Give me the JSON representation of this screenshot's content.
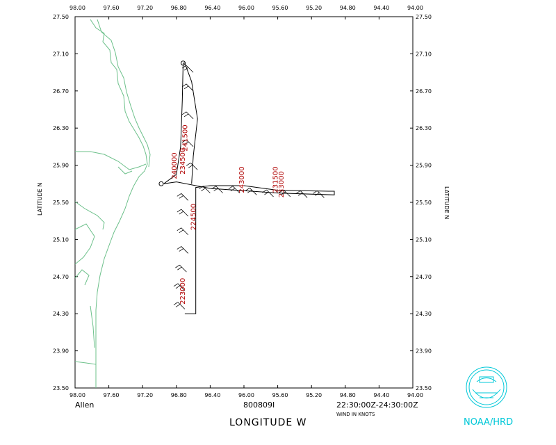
{
  "map": {
    "storm_name": "Allen",
    "flight_id": "800809I",
    "time_range": "22:30:00Z-24:30:00Z",
    "wind_units": "WIND IN KNOTS",
    "x_axis_label": "LONGITUDE  W",
    "y_axis_label": "LATITUDE  N",
    "organization": "NOAA/HRD",
    "coast_color": "#6cc08a",
    "track_color": "#000000",
    "label_color": "#b00000",
    "logo_color": "#00c8d8"
  },
  "chart_data": {
    "type": "map",
    "lon_range": [
      98.0,
      94.0
    ],
    "lat_range": [
      23.5,
      27.5
    ],
    "lon_ticks": [
      "98.00",
      "97.60",
      "97.20",
      "96.80",
      "96.40",
      "96.00",
      "95.60",
      "95.20",
      "94.80",
      "94.40",
      "94.00"
    ],
    "lat_ticks": [
      "27.50",
      "27.10",
      "26.70",
      "26.30",
      "25.90",
      "25.50",
      "25.10",
      "24.70",
      "24.30",
      "23.90",
      "23.50"
    ],
    "flight_track": [
      {
        "lon": 96.7,
        "lat": 24.3
      },
      {
        "lon": 96.57,
        "lat": 24.3
      },
      {
        "lon": 96.57,
        "lat": 25.1
      },
      {
        "lon": 96.57,
        "lat": 25.66
      },
      {
        "lon": 96.4,
        "lat": 25.68
      },
      {
        "lon": 96.0,
        "lat": 25.68
      },
      {
        "lon": 95.6,
        "lat": 25.63
      },
      {
        "lon": 95.0,
        "lat": 25.62
      },
      {
        "lon": 94.93,
        "lat": 25.62
      },
      {
        "lon": 94.93,
        "lat": 25.58
      },
      {
        "lon": 95.6,
        "lat": 25.6
      },
      {
        "lon": 96.4,
        "lat": 25.65
      },
      {
        "lon": 96.8,
        "lat": 25.72
      },
      {
        "lon": 96.95,
        "lat": 25.7
      },
      {
        "lon": 96.8,
        "lat": 25.8
      },
      {
        "lon": 96.75,
        "lat": 26.1
      },
      {
        "lon": 96.73,
        "lat": 26.6
      },
      {
        "lon": 96.72,
        "lat": 27.0
      },
      {
        "lon": 96.7,
        "lat": 27.0
      },
      {
        "lon": 96.62,
        "lat": 26.8
      },
      {
        "lon": 96.55,
        "lat": 26.4
      },
      {
        "lon": 96.6,
        "lat": 26.0
      },
      {
        "lon": 96.62,
        "lat": 25.7
      }
    ],
    "wind_barbs": [
      {
        "lon": 96.7,
        "lat": 24.35
      },
      {
        "lon": 96.7,
        "lat": 24.55
      },
      {
        "lon": 96.68,
        "lat": 24.75
      },
      {
        "lon": 96.66,
        "lat": 24.95
      },
      {
        "lon": 96.66,
        "lat": 25.15
      },
      {
        "lon": 96.66,
        "lat": 25.35
      },
      {
        "lon": 96.66,
        "lat": 25.52
      },
      {
        "lon": 96.4,
        "lat": 25.6
      },
      {
        "lon": 96.25,
        "lat": 25.6
      },
      {
        "lon": 96.05,
        "lat": 25.6
      },
      {
        "lon": 95.85,
        "lat": 25.58
      },
      {
        "lon": 95.65,
        "lat": 25.56
      },
      {
        "lon": 95.45,
        "lat": 25.56
      },
      {
        "lon": 95.25,
        "lat": 25.55
      },
      {
        "lon": 95.05,
        "lat": 25.55
      },
      {
        "lon": 96.6,
        "lat": 26.1
      },
      {
        "lon": 96.6,
        "lat": 26.4
      },
      {
        "lon": 96.6,
        "lat": 26.7
      },
      {
        "lon": 96.6,
        "lat": 26.9
      },
      {
        "lon": 96.55,
        "lat": 25.85
      }
    ],
    "time_labels": [
      {
        "text": "241500",
        "lon": 96.67,
        "lat": 26.05
      },
      {
        "text": "240000",
        "lon": 96.8,
        "lat": 25.75
      },
      {
        "text": "234500",
        "lon": 96.7,
        "lat": 25.8
      },
      {
        "text": "243000",
        "lon": 96.0,
        "lat": 25.6
      },
      {
        "text": "231500",
        "lon": 95.6,
        "lat": 25.6
      },
      {
        "text": "233000",
        "lon": 95.53,
        "lat": 25.55
      },
      {
        "text": "224500",
        "lon": 96.57,
        "lat": 25.2
      },
      {
        "text": "223000",
        "lon": 96.7,
        "lat": 24.4
      }
    ]
  }
}
